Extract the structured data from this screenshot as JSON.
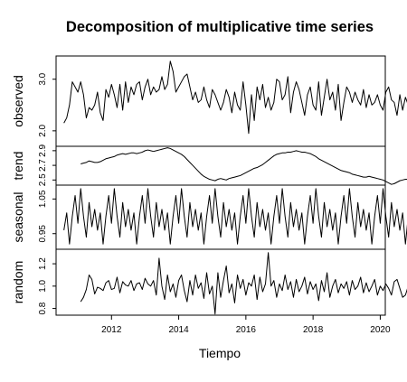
{
  "chart_data": {
    "type": "line",
    "title": "Decomposition of multiplicative time series",
    "xlabel": "Tiempo",
    "x_ticks": [
      2012,
      2014,
      2016,
      2018,
      2020
    ],
    "xlim": [
      2010.35,
      2020.15
    ],
    "panels": [
      {
        "name": "observed",
        "ylabel": "observed",
        "ylim": [
          1.7,
          3.45
        ],
        "y_ticks": [
          {
            "value": 2.0,
            "label": "2.0"
          },
          {
            "value": 3.0,
            "label": "3.0"
          }
        ],
        "start": 2010.583,
        "step": 0.0833333,
        "values": [
          2.15,
          2.25,
          2.5,
          2.95,
          2.85,
          2.75,
          2.95,
          2.7,
          2.25,
          2.45,
          2.4,
          2.5,
          2.75,
          2.35,
          2.2,
          2.8,
          2.65,
          2.9,
          2.7,
          2.45,
          2.9,
          2.4,
          2.95,
          2.55,
          2.85,
          2.7,
          2.9,
          2.95,
          2.6,
          2.85,
          3.0,
          2.7,
          2.85,
          2.75,
          2.8,
          3.05,
          2.8,
          2.9,
          3.35,
          3.15,
          2.75,
          2.85,
          2.95,
          3.05,
          3.1,
          2.85,
          2.6,
          2.75,
          2.55,
          2.6,
          2.85,
          2.6,
          2.45,
          2.8,
          2.7,
          2.55,
          2.4,
          2.55,
          2.8,
          2.65,
          2.35,
          2.75,
          2.5,
          2.4,
          2.95,
          2.5,
          1.95,
          2.7,
          2.2,
          2.85,
          2.6,
          2.9,
          2.45,
          2.65,
          2.4,
          2.55,
          3.0,
          2.95,
          2.6,
          2.7,
          3.05,
          2.35,
          2.75,
          2.95,
          2.8,
          2.55,
          2.3,
          2.7,
          2.85,
          2.5,
          2.4,
          2.95,
          2.3,
          2.65,
          3.0,
          2.6,
          2.75,
          2.4,
          2.9,
          2.2,
          2.55,
          2.85,
          2.75,
          2.55,
          2.75,
          2.6,
          2.5,
          2.8,
          2.45,
          2.7,
          2.5,
          2.55,
          2.7,
          2.5,
          2.4,
          2.75,
          2.85,
          2.6,
          2.55,
          2.3,
          2.7,
          2.4,
          2.65,
          2.5,
          2.8,
          2.55,
          2.45,
          2.6,
          2.3,
          2.3,
          2.5,
          2.7,
          2.45,
          2.35,
          2.3,
          2.2,
          2.2,
          2.4,
          2.8,
          3.0,
          2.6,
          2.8,
          2.9,
          2.6,
          2.5,
          2.75,
          2.95,
          2.85,
          2.7,
          3.05,
          2.9,
          2.5
        ]
      },
      {
        "name": "trend",
        "ylabel": "trend",
        "ylim": [
          2.43,
          2.96
        ],
        "y_ticks": [
          {
            "value": 2.5,
            "label": "2.5"
          },
          {
            "value": 2.7,
            "label": "2.7"
          },
          {
            "value": 2.9,
            "label": "2.9"
          }
        ],
        "start": 2011.083,
        "step": 0.0833333,
        "values": [
          2.72,
          2.73,
          2.74,
          2.76,
          2.75,
          2.74,
          2.74,
          2.75,
          2.77,
          2.79,
          2.8,
          2.81,
          2.82,
          2.84,
          2.85,
          2.86,
          2.85,
          2.86,
          2.87,
          2.87,
          2.86,
          2.87,
          2.88,
          2.9,
          2.91,
          2.9,
          2.89,
          2.9,
          2.91,
          2.92,
          2.93,
          2.94,
          2.93,
          2.91,
          2.89,
          2.87,
          2.85,
          2.82,
          2.78,
          2.74,
          2.7,
          2.66,
          2.62,
          2.58,
          2.55,
          2.53,
          2.51,
          2.5,
          2.49,
          2.51,
          2.52,
          2.51,
          2.5,
          2.52,
          2.53,
          2.54,
          2.55,
          2.56,
          2.58,
          2.6,
          2.62,
          2.64,
          2.66,
          2.67,
          2.69,
          2.71,
          2.74,
          2.77,
          2.8,
          2.83,
          2.85,
          2.86,
          2.87,
          2.87,
          2.88,
          2.88,
          2.89,
          2.9,
          2.89,
          2.88,
          2.88,
          2.87,
          2.86,
          2.84,
          2.82,
          2.79,
          2.77,
          2.75,
          2.73,
          2.71,
          2.69,
          2.67,
          2.65,
          2.63,
          2.62,
          2.61,
          2.6,
          2.58,
          2.57,
          2.56,
          2.55,
          2.54,
          2.54,
          2.55,
          2.54,
          2.53,
          2.52,
          2.51,
          2.5,
          2.48,
          2.46,
          2.44,
          2.45,
          2.47,
          2.49,
          2.5,
          2.51,
          2.51,
          2.52,
          2.53,
          2.55,
          2.57,
          2.6,
          2.63,
          2.66,
          2.68
        ]
      },
      {
        "name": "seasonal",
        "ylabel": "seasonal",
        "ylim": [
          0.905,
          1.09
        ],
        "y_ticks": [
          {
            "value": 0.95,
            "label": "0.95"
          },
          {
            "value": 1.05,
            "label": "1.05"
          }
        ],
        "start": 2010.583,
        "step": 0.0833333,
        "cycle": [
          0.96,
          1.01,
          0.92,
          1.0,
          1.06,
          0.98,
          1.08,
          1.0,
          0.94,
          1.04,
          0.97,
          1.02
        ],
        "cycles": 12
      },
      {
        "name": "random",
        "ylabel": "random",
        "ylim": [
          0.74,
          1.33
        ],
        "y_ticks": [
          {
            "value": 0.8,
            "label": "0.8"
          },
          {
            "value": 1.0,
            "label": "1.0"
          },
          {
            "value": 1.2,
            "label": "1.2"
          }
        ],
        "start": 2011.083,
        "step": 0.0833333,
        "values": [
          0.86,
          0.9,
          0.97,
          1.1,
          1.06,
          0.93,
          0.99,
          0.98,
          0.96,
          1.03,
          1.05,
          0.97,
          0.98,
          1.08,
          0.94,
          1.04,
          1.01,
          1.0,
          1.05,
          0.96,
          1.02,
          1.03,
          0.97,
          1.07,
          1.02,
          1.0,
          1.05,
          0.92,
          1.25,
          1.0,
          0.88,
          1.1,
          0.95,
          1.02,
          0.9,
          1.05,
          1.1,
          0.96,
          0.86,
          1.05,
          0.92,
          1.1,
          0.98,
          1.03,
          0.89,
          1.12,
          0.93,
          1.0,
          0.75,
          1.12,
          0.9,
          1.05,
          1.18,
          0.94,
          1.02,
          0.85,
          1.1,
          0.98,
          1.06,
          0.92,
          1.03,
          1.0,
          1.1,
          0.88,
          1.08,
          0.95,
          1.02,
          1.3,
          1.0,
          1.05,
          0.9,
          1.02,
          0.96,
          1.1,
          0.97,
          1.04,
          0.9,
          1.06,
          0.95,
          1.0,
          1.08,
          0.93,
          1.04,
          0.97,
          1.02,
          0.87,
          1.05,
          0.95,
          1.12,
          0.9,
          1.0,
          1.06,
          0.94,
          1.02,
          0.98,
          1.04,
          0.92,
          1.05,
          0.97,
          1.0,
          1.08,
          0.94,
          1.03,
          0.95,
          1.0,
          1.06,
          0.92,
          1.0,
          0.96,
          1.02,
          0.98,
          0.92,
          1.04,
          1.06,
          0.98,
          0.9,
          0.92,
          1.0,
          1.1,
          1.0,
          1.23,
          1.08,
          1.04,
          1.05,
          1.05
        ]
      }
    ]
  }
}
